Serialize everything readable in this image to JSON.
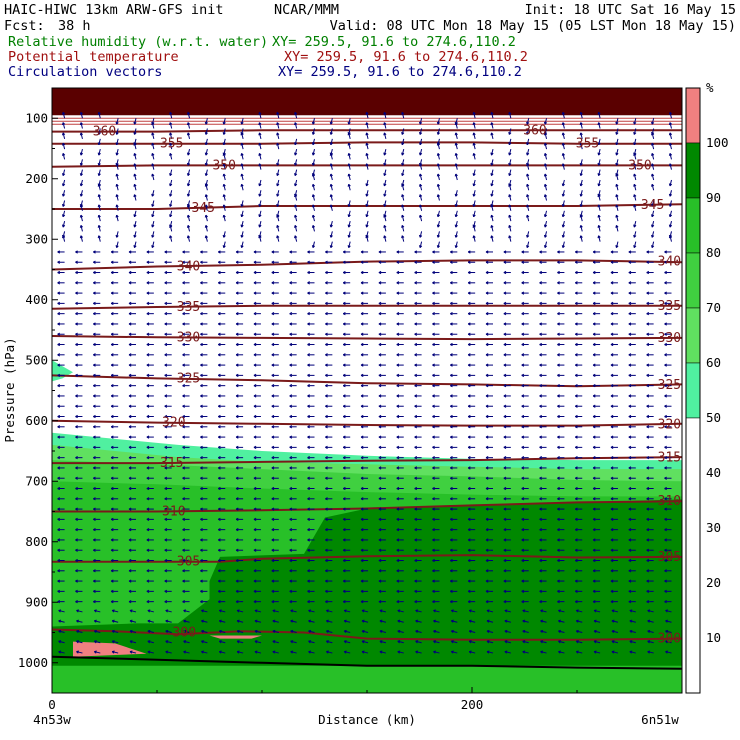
{
  "header": {
    "model": "HAIC-HIWC 13km ARW-GFS init",
    "center": "NCAR/MMM",
    "init": "Init: 18 UTC Sat 16 May 15",
    "fcst_label": "Fcst:",
    "fcst_value": "38 h",
    "valid": "Valid: 08 UTC Mon 18 May 15 (05 LST Mon 18 May 15)"
  },
  "fields": [
    {
      "name": "Relative humidity (w.r.t. water)",
      "xy": "XY= 259.5, 91.6 to 274.6,110.2",
      "color": "#008000"
    },
    {
      "name": "Potential temperature",
      "xy": "XY= 259.5, 91.6 to 274.6,110.2",
      "color": "#a01010"
    },
    {
      "name": "Circulation vectors",
      "xy": "XY= 259.5, 91.6 to 274.6,110.2",
      "color": "#000080"
    }
  ],
  "colors": {
    "theta": "#7a1a1a",
    "vectors": "#00007a",
    "terrain": "#000000"
  },
  "chart_data": {
    "type": "heatmap",
    "xlabel": "Distance (km)",
    "ylabel": "Pressure (hPa)",
    "xlim": [
      0,
      300
    ],
    "ylim": [
      1050,
      50
    ],
    "x_ticks": [
      0,
      200
    ],
    "y_ticks": [
      100,
      200,
      300,
      400,
      500,
      600,
      700,
      800,
      900,
      1000
    ],
    "x_end_labels": [
      "4n53w",
      "6n51w"
    ],
    "colorbar": {
      "unit": "%",
      "levels": [
        10,
        20,
        30,
        40,
        50,
        60,
        70,
        80,
        90,
        100
      ],
      "bins": [
        {
          "min": 0,
          "max": 50,
          "color": "#ffffff"
        },
        {
          "min": 50,
          "max": 60,
          "color": "#50f0a0"
        },
        {
          "min": 60,
          "max": 70,
          "color": "#60e060"
        },
        {
          "min": 70,
          "max": 80,
          "color": "#40d040"
        },
        {
          "min": 80,
          "max": 90,
          "color": "#28c028"
        },
        {
          "min": 90,
          "max": 100,
          "color": "#008800"
        },
        {
          "min": 100,
          "max": 110,
          "color": "#f08080"
        }
      ]
    },
    "theta_contours": [
      {
        "value": 300,
        "points": [
          [
            0,
            945
          ],
          [
            30,
            948
          ],
          [
            60,
            953
          ],
          [
            90,
            948
          ],
          [
            120,
            950
          ],
          [
            150,
            960
          ],
          [
            200,
            962
          ],
          [
            250,
            962
          ],
          [
            300,
            960
          ]
        ]
      },
      {
        "value": 305,
        "points": [
          [
            0,
            833
          ],
          [
            40,
            833
          ],
          [
            80,
            833
          ],
          [
            100,
            828
          ],
          [
            150,
            824
          ],
          [
            200,
            822
          ],
          [
            250,
            826
          ],
          [
            300,
            825
          ]
        ]
      },
      {
        "value": 310,
        "points": [
          [
            0,
            750
          ],
          [
            50,
            750
          ],
          [
            100,
            748
          ],
          [
            150,
            745
          ],
          [
            200,
            740
          ],
          [
            250,
            735
          ],
          [
            300,
            733
          ]
        ]
      },
      {
        "value": 315,
        "points": [
          [
            0,
            670
          ],
          [
            50,
            670
          ],
          [
            100,
            668
          ],
          [
            150,
            666
          ],
          [
            200,
            665
          ],
          [
            250,
            662
          ],
          [
            300,
            660
          ]
        ]
      },
      {
        "value": 320,
        "points": [
          [
            0,
            600
          ],
          [
            50,
            603
          ],
          [
            100,
            605
          ],
          [
            150,
            607
          ],
          [
            200,
            608
          ],
          [
            250,
            608
          ],
          [
            300,
            605
          ]
        ]
      },
      {
        "value": 325,
        "points": [
          [
            0,
            525
          ],
          [
            50,
            530
          ],
          [
            100,
            533
          ],
          [
            150,
            538
          ],
          [
            200,
            540
          ],
          [
            250,
            543
          ],
          [
            300,
            540
          ]
        ]
      },
      {
        "value": 330,
        "points": [
          [
            0,
            460
          ],
          [
            50,
            462
          ],
          [
            100,
            463
          ],
          [
            150,
            464
          ],
          [
            200,
            465
          ],
          [
            250,
            464
          ],
          [
            300,
            463
          ]
        ]
      },
      {
        "value": 335,
        "points": [
          [
            0,
            415
          ],
          [
            50,
            412
          ],
          [
            100,
            410
          ],
          [
            150,
            410
          ],
          [
            200,
            410
          ],
          [
            250,
            410
          ],
          [
            300,
            410
          ]
        ]
      },
      {
        "value": 340,
        "points": [
          [
            0,
            350
          ],
          [
            50,
            345
          ],
          [
            100,
            342
          ],
          [
            150,
            337
          ],
          [
            200,
            335
          ],
          [
            250,
            335
          ],
          [
            300,
            338
          ]
        ]
      },
      {
        "value": 345,
        "points": [
          [
            0,
            250
          ],
          [
            50,
            250
          ],
          [
            100,
            245
          ],
          [
            150,
            245
          ],
          [
            200,
            245
          ],
          [
            250,
            245
          ],
          [
            300,
            242
          ]
        ]
      },
      {
        "value": 350,
        "points": [
          [
            0,
            180
          ],
          [
            50,
            178
          ],
          [
            100,
            178
          ],
          [
            150,
            178
          ],
          [
            200,
            178
          ],
          [
            250,
            178
          ],
          [
            300,
            178
          ]
        ]
      },
      {
        "value": 355,
        "points": [
          [
            0,
            142
          ],
          [
            50,
            142
          ],
          [
            100,
            142
          ],
          [
            150,
            140
          ],
          [
            200,
            140
          ],
          [
            250,
            142
          ],
          [
            300,
            142
          ]
        ]
      },
      {
        "value": 360,
        "points": [
          [
            0,
            122
          ],
          [
            50,
            122
          ],
          [
            100,
            120
          ],
          [
            150,
            120
          ],
          [
            200,
            120
          ],
          [
            250,
            120
          ],
          [
            300,
            120
          ]
        ]
      }
    ],
    "theta_labels": [
      {
        "text": "360",
        "x": 25,
        "p": 122
      },
      {
        "text": "360",
        "x": 230,
        "p": 120
      },
      {
        "text": "355",
        "x": 57,
        "p": 142
      },
      {
        "text": "355",
        "x": 255,
        "p": 142
      },
      {
        "text": "350",
        "x": 82,
        "p": 178
      },
      {
        "text": "350",
        "x": 280,
        "p": 178
      },
      {
        "text": "345",
        "x": 72,
        "p": 248
      },
      {
        "text": "345",
        "x": 286,
        "p": 243
      },
      {
        "text": "340",
        "x": 65,
        "p": 345
      },
      {
        "text": "340",
        "x": 294,
        "p": 337
      },
      {
        "text": "335",
        "x": 65,
        "p": 412
      },
      {
        "text": "335",
        "x": 294,
        "p": 410
      },
      {
        "text": "330",
        "x": 65,
        "p": 462
      },
      {
        "text": "330",
        "x": 294,
        "p": 463
      },
      {
        "text": "325",
        "x": 65,
        "p": 530
      },
      {
        "text": "325",
        "x": 294,
        "p": 541
      },
      {
        "text": "320",
        "x": 58,
        "p": 603
      },
      {
        "text": "320",
        "x": 294,
        "p": 606
      },
      {
        "text": "315",
        "x": 57,
        "p": 670
      },
      {
        "text": "315",
        "x": 294,
        "p": 661
      },
      {
        "text": "310",
        "x": 58,
        "p": 750
      },
      {
        "text": "310",
        "x": 294,
        "p": 733
      },
      {
        "text": "305",
        "x": 65,
        "p": 833
      },
      {
        "text": "305",
        "x": 294,
        "p": 825
      },
      {
        "text": "300",
        "x": 63,
        "p": 950
      },
      {
        "text": "300",
        "x": 294,
        "p": 960
      }
    ],
    "rh_regions": [
      {
        "level": 90,
        "color": "#008800",
        "points": [
          [
            0,
            940
          ],
          [
            40,
            935
          ],
          [
            60,
            935
          ],
          [
            75,
            895
          ],
          [
            75,
            865
          ],
          [
            80,
            825
          ],
          [
            120,
            820
          ],
          [
            130,
            760
          ],
          [
            150,
            745
          ],
          [
            200,
            740
          ],
          [
            250,
            735
          ],
          [
            300,
            730
          ],
          [
            300,
            1005
          ],
          [
            0,
            1005
          ]
        ]
      },
      {
        "level": 100,
        "color": "#f08080",
        "points": [
          [
            10,
            965
          ],
          [
            30,
            968
          ],
          [
            45,
            985
          ],
          [
            10,
            990
          ]
        ]
      },
      {
        "level": 100,
        "color": "#f08080",
        "points": [
          [
            75,
            955
          ],
          [
            100,
            955
          ],
          [
            95,
            960
          ],
          [
            80,
            960
          ]
        ]
      },
      {
        "level": 100,
        "color": "#5a0000",
        "points": [
          [
            0,
            50
          ],
          [
            300,
            50
          ],
          [
            300,
            95
          ],
          [
            0,
            95
          ]
        ]
      }
    ],
    "terrain": [
      [
        0,
        990
      ],
      [
        50,
        995
      ],
      [
        100,
        1000
      ],
      [
        150,
        1005
      ],
      [
        200,
        1005
      ],
      [
        250,
        1008
      ],
      [
        300,
        1010
      ]
    ]
  }
}
